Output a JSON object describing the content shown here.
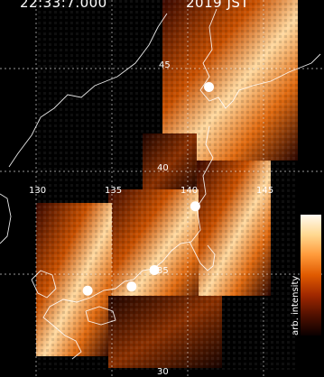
{
  "title": {
    "left": "22:33:7.000",
    "right": "2019 JST"
  },
  "lon_labels": [
    "130",
    "135",
    "140",
    "145"
  ],
  "lat_labels": [
    "45",
    "40",
    "35",
    "30"
  ],
  "colorbar": {
    "label": "arb. intensity",
    "colors": [
      "#0a0000",
      "#501000",
      "#a02800",
      "#e05a00",
      "#ff9a3a",
      "#ffd890",
      "#fffaf0"
    ]
  },
  "markers": [
    {
      "name": "marker-hokkaido",
      "lon": 141.4,
      "lat": 44.1
    },
    {
      "name": "marker-tohoku",
      "lon": 140.5,
      "lat": 38.3
    },
    {
      "name": "marker-kanto",
      "lon": 137.8,
      "lat": 35.2
    },
    {
      "name": "marker-kinki",
      "lon": 136.3,
      "lat": 34.4
    },
    {
      "name": "marker-kyushu",
      "lon": 133.4,
      "lat": 34.2
    }
  ]
}
